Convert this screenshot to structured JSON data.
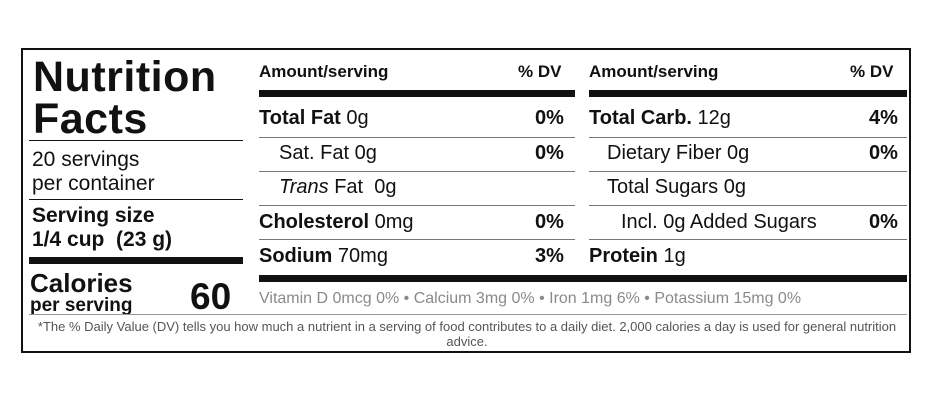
{
  "title": "Nutrition Facts",
  "servings_line1": "20 servings",
  "servings_line2": "per container",
  "serving_size_label": "Serving size",
  "serving_size_value": "1/4 cup  (23 g)",
  "calories_label": "Calories",
  "calories_sub": "per serving",
  "calories_value": "60",
  "left": {
    "header_amount": "Amount/serving",
    "header_dv": "% DV",
    "rows": [
      {
        "name": "Total Fat",
        "amount": "0g",
        "dv": "0%"
      },
      {
        "name": "Sat. Fat",
        "amount": "0g",
        "dv": "0%"
      },
      {
        "name_italic": "Trans",
        "name": "Fat",
        "amount": "0g",
        "dv": ""
      },
      {
        "name": "Cholesterol",
        "amount": "0mg",
        "dv": "0%"
      },
      {
        "name": "Sodium",
        "amount": "70mg",
        "dv": "3%"
      }
    ]
  },
  "right": {
    "header_amount": "Amount/serving",
    "header_dv": "% DV",
    "rows": [
      {
        "name": "Total Carb.",
        "amount": "12g",
        "dv": "4%"
      },
      {
        "name": "Dietary Fiber",
        "amount": "0g",
        "dv": "0%"
      },
      {
        "name": "Total Sugars",
        "amount": "0g",
        "dv": ""
      },
      {
        "name": "Incl. 0g Added Sugars",
        "amount": "",
        "dv": "0%"
      },
      {
        "name": "Protein",
        "amount": "1g",
        "dv": ""
      }
    ]
  },
  "vitamins_line": "Vitamin D 0mcg 0% • Calcium 3mg 0% • Iron 1mg 6% • Potassium 15mg  0%",
  "footnote": "*The % Daily Value (DV) tells you how much a nutrient in a serving of food contributes to a daily diet. 2,000 calories a day is used for general nutrition advice."
}
